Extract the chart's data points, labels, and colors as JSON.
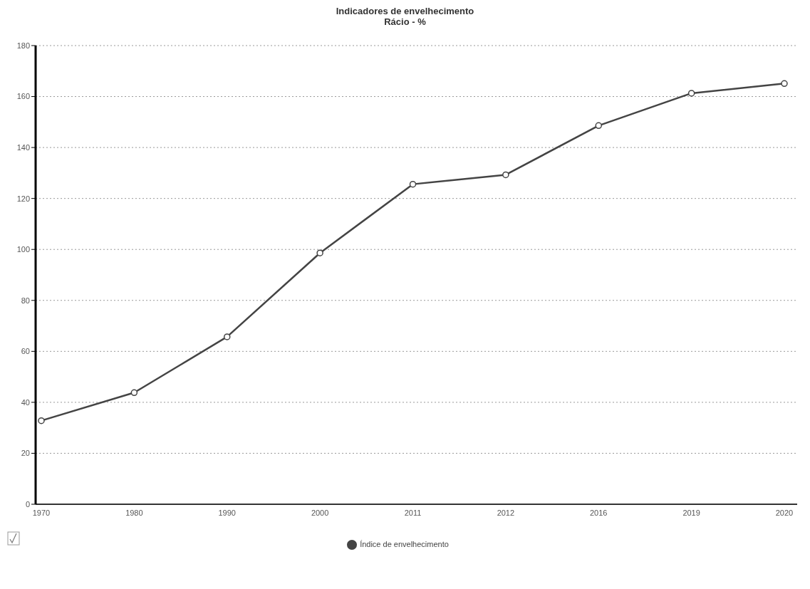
{
  "chart_data": {
    "type": "line",
    "title": "Indicadores de envelhecimento",
    "subtitle": "Rácio - %",
    "categories": [
      "1970",
      "1980",
      "1990",
      "2000",
      "2011",
      "2012",
      "2016",
      "2019",
      "2020"
    ],
    "series": [
      {
        "name": "Índice de envelhecimento",
        "color": "#444444",
        "values": [
          32.8,
          43.8,
          65.7,
          98.6,
          125.6,
          129.3,
          148.6,
          161.3,
          165.1
        ]
      }
    ],
    "ylim": [
      0,
      180
    ],
    "yticks": [
      0,
      20,
      40,
      60,
      80,
      100,
      120,
      140,
      160,
      180
    ],
    "grid": "y",
    "legend": "bottom",
    "marker": "circle",
    "line_style": "solid"
  }
}
